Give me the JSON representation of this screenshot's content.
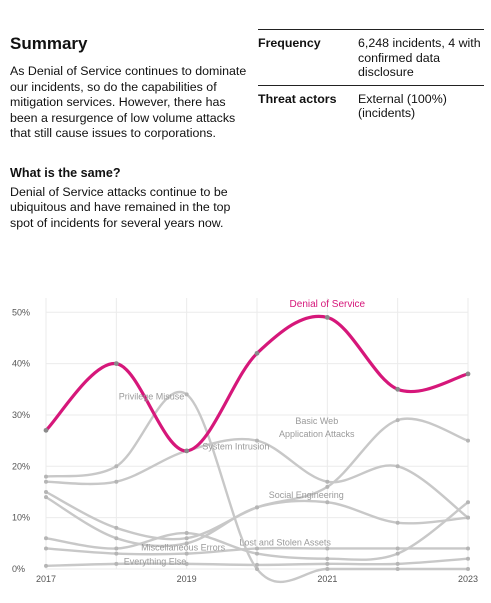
{
  "summary": {
    "title": "Summary",
    "body": "As Denial of Service continues to dominate our incidents, so do the capabilities of mitigation services. However, there has been a resurgence of low volume attacks that still cause issues to corporations.",
    "same_heading": "What is the same?",
    "same_body": "Denial of Service attacks continue to be ubiquitous and have remained in the top spot of incidents for several years now."
  },
  "facts": [
    {
      "label": "Frequency",
      "value": "6,248 incidents, 4 with confirmed data disclosure"
    },
    {
      "label": "Threat actors",
      "value": "External (100%) (incidents)"
    }
  ],
  "colors": {
    "highlight": "#d6177a",
    "series": "#c8c8c8"
  },
  "chart_data": {
    "type": "line",
    "x": [
      2017,
      2018,
      2019,
      2020,
      2021,
      2022,
      2023
    ],
    "xticks": [
      "2017",
      "2019",
      "2021",
      "2023"
    ],
    "yticks": [
      "0%",
      "10%",
      "20%",
      "30%",
      "40%",
      "50%"
    ],
    "ylim": [
      0,
      52
    ],
    "grid": true,
    "series": [
      {
        "name": "Denial of Service",
        "values": [
          27,
          40,
          23,
          42,
          49,
          35,
          38
        ],
        "highlight": true
      },
      {
        "name": "Privilege Misuse",
        "values": [
          18,
          20,
          34,
          0,
          0,
          0,
          0
        ]
      },
      {
        "name": "System Intrusion",
        "values": [
          17,
          17,
          23,
          25,
          17,
          20,
          10
        ]
      },
      {
        "name": "Basic Web Application Attacks",
        "values": [
          15,
          8,
          6,
          12,
          16,
          29,
          25
        ]
      },
      {
        "name": "Social Engineering",
        "values": [
          14,
          6,
          5,
          12,
          13,
          9,
          10
        ]
      },
      {
        "name": "Miscellaneous Errors",
        "values": [
          6,
          4,
          7,
          3,
          2,
          3,
          13
        ]
      },
      {
        "name": "Lost and Stolen Assets",
        "values": [
          4,
          3,
          3,
          4,
          4,
          4,
          4
        ]
      },
      {
        "name": "Everything Else",
        "values": [
          0.6,
          1,
          1,
          0.8,
          1,
          1,
          2
        ]
      }
    ],
    "labels": [
      {
        "series": "Denial of Service",
        "text": "Denial of Service",
        "x": 2021,
        "y": 51
      },
      {
        "series": "Privilege Misuse",
        "text": "Privilege Misuse",
        "x": 2018.5,
        "y": 33
      },
      {
        "series": "System Intrusion",
        "text": "System Intrusion",
        "x": 2019.7,
        "y": 23.3
      },
      {
        "series": "Basic Web Application Attacks",
        "text": "Basic Web",
        "x": 2020.85,
        "y": 28.2
      },
      {
        "series": "Basic Web Application Attacks",
        "text": "Application Attacks",
        "x": 2020.85,
        "y": 25.7
      },
      {
        "series": "Social Engineering",
        "text": "Social Engineering",
        "x": 2020.7,
        "y": 13.8
      },
      {
        "series": "Miscellaneous Errors",
        "text": "Miscellaneous Errors",
        "x": 2018.95,
        "y": 3.6
      },
      {
        "series": "Lost and Stolen Assets",
        "text": "Lost and Stolen Assets",
        "x": 2020.4,
        "y": 4.6
      },
      {
        "series": "Everything Else",
        "text": "Everything Else",
        "x": 2018.55,
        "y": 0.9
      }
    ]
  }
}
